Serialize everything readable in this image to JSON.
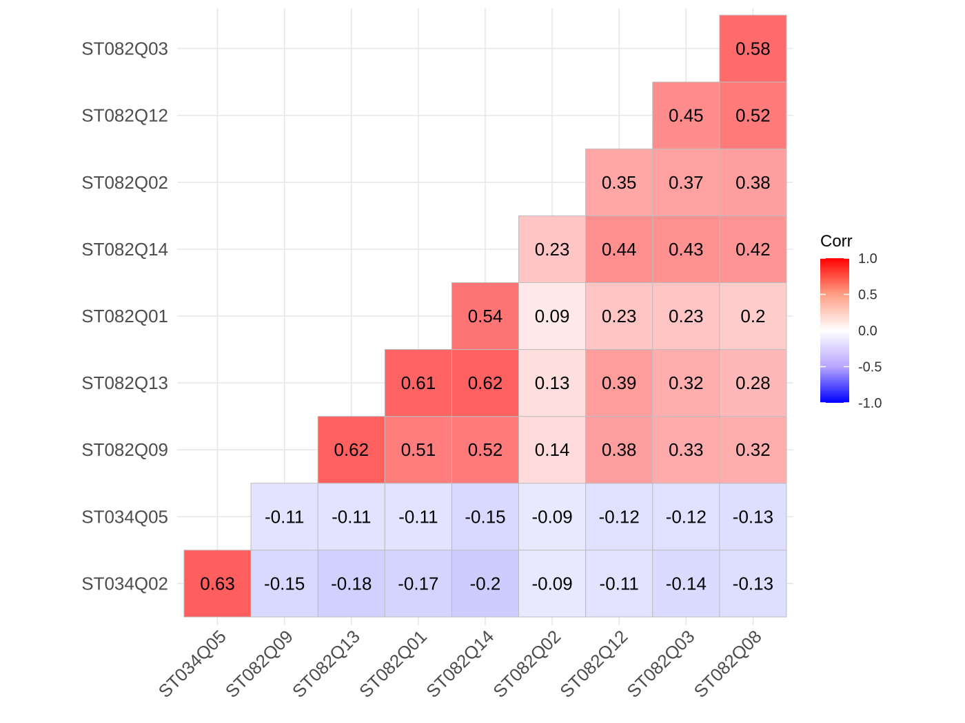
{
  "chart_data": {
    "type": "heatmap",
    "title": "",
    "xlabel": "",
    "ylabel": "",
    "x_categories": [
      "ST034Q05",
      "ST082Q09",
      "ST082Q13",
      "ST082Q01",
      "ST082Q14",
      "ST082Q02",
      "ST082Q12",
      "ST082Q03",
      "ST082Q08"
    ],
    "y_categories": [
      "ST034Q02",
      "ST034Q05",
      "ST082Q09",
      "ST082Q13",
      "ST082Q01",
      "ST082Q14",
      "ST082Q02",
      "ST082Q12",
      "ST082Q03"
    ],
    "values": [
      [
        0.63,
        -0.15,
        -0.18,
        -0.17,
        -0.2,
        -0.09,
        -0.11,
        -0.14,
        -0.13
      ],
      [
        null,
        -0.11,
        -0.11,
        -0.11,
        -0.15,
        -0.09,
        -0.12,
        -0.12,
        -0.13
      ],
      [
        null,
        null,
        0.62,
        0.51,
        0.52,
        0.14,
        0.38,
        0.33,
        0.32
      ],
      [
        null,
        null,
        null,
        0.61,
        0.62,
        0.13,
        0.39,
        0.32,
        0.28
      ],
      [
        null,
        null,
        null,
        null,
        0.54,
        0.09,
        0.23,
        0.23,
        0.2
      ],
      [
        null,
        null,
        null,
        null,
        null,
        0.23,
        0.44,
        0.43,
        0.42
      ],
      [
        null,
        null,
        null,
        null,
        null,
        null,
        0.35,
        0.37,
        0.38
      ],
      [
        null,
        null,
        null,
        null,
        null,
        null,
        null,
        0.45,
        0.52
      ],
      [
        null,
        null,
        null,
        null,
        null,
        null,
        null,
        null,
        0.58
      ]
    ],
    "grid": true,
    "legend": {
      "title": "Corr",
      "position": "right",
      "range": [
        -1.0,
        1.0
      ],
      "ticks": [
        "1.0",
        "0.5",
        "0.0",
        "-0.5",
        "-1.0"
      ],
      "colors": {
        "low": "#0000ff",
        "mid": "#ffffff",
        "high": "#ff0000"
      }
    },
    "colors": {
      "cell_border": "#bdbdbd",
      "grid": "#e6e6e6"
    }
  }
}
